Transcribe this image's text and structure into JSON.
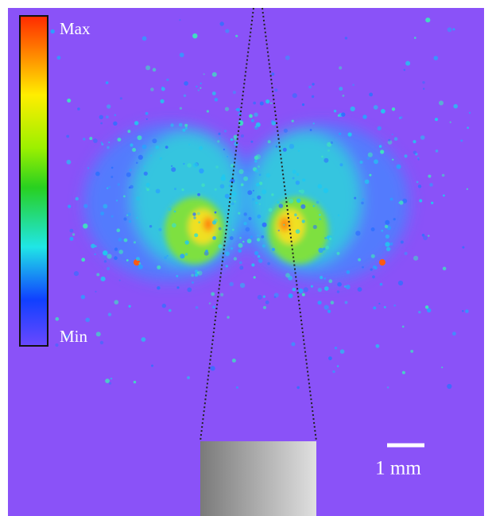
{
  "colorbar": {
    "max_label": "Max",
    "min_label": "Min"
  },
  "scale_bar": {
    "label": "1 mm"
  }
}
